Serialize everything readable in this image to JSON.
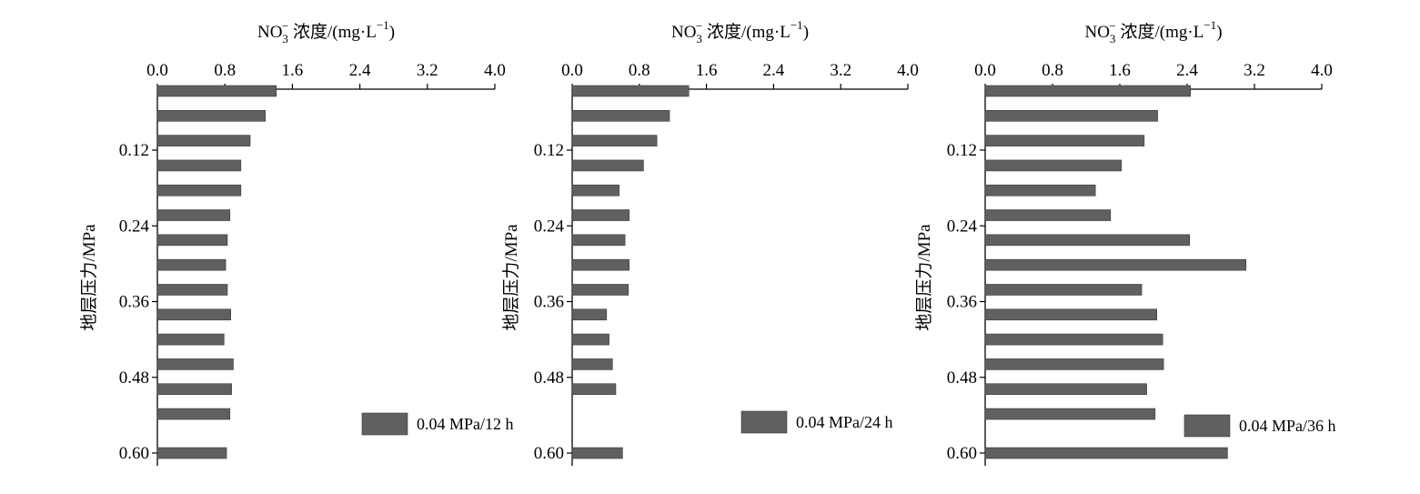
{
  "colors": {
    "bar": "#606060",
    "bar_stroke": "#3a3a3a",
    "axis": "#000000",
    "background": "#ffffff"
  },
  "axes_common": {
    "x_ticks": [
      "0.0",
      "0.8",
      "1.6",
      "2.4",
      "3.2",
      "4.0"
    ],
    "x_tick_values": [
      0.0,
      0.8,
      1.6,
      2.4,
      3.2,
      4.0
    ],
    "xlim": [
      0,
      4.0
    ],
    "y_tick_labels": [
      "0.12",
      "0.24",
      "0.36",
      "0.48",
      "0.60"
    ],
    "y_tick_values": [
      0.12,
      0.24,
      0.36,
      0.48,
      0.6
    ],
    "ylim": [
      0.0,
      0.61
    ],
    "xlabel_prefix": "NO",
    "xlabel_sub": "3",
    "xlabel_sup_ion": "−",
    "xlabel_rest": " 浓度/(mg·L",
    "xlabel_exp": "−1",
    "xlabel_close": ")",
    "ylabel": "地层压力/MPa"
  },
  "chart_data": [
    {
      "type": "bar",
      "orientation": "horizontal",
      "title": "",
      "xlabel": "NO3− 浓度/(mg·L−1)",
      "ylabel": "地层压力/MPa",
      "legend": "0.04 MPa/12 h",
      "legend_position": "bottom-right",
      "categories": [
        0.02,
        0.06,
        0.1,
        0.14,
        0.18,
        0.22,
        0.26,
        0.3,
        0.34,
        0.38,
        0.42,
        0.46,
        0.5,
        0.54,
        0.6
      ],
      "values": [
        1.41,
        1.28,
        1.1,
        0.99,
        0.99,
        0.86,
        0.83,
        0.81,
        0.83,
        0.87,
        0.79,
        0.9,
        0.88,
        0.86,
        0.82
      ],
      "xlim": [
        0,
        4.0
      ],
      "ylim": [
        0.0,
        0.61
      ]
    },
    {
      "type": "bar",
      "orientation": "horizontal",
      "title": "",
      "xlabel": "NO3− 浓度/(mg·L−1)",
      "ylabel": "地层压力/MPa",
      "legend": "0.04 MPa/24 h",
      "legend_position": "bottom-right",
      "categories": [
        0.02,
        0.06,
        0.1,
        0.14,
        0.18,
        0.22,
        0.26,
        0.3,
        0.34,
        0.38,
        0.42,
        0.46,
        0.5,
        0.6
      ],
      "values": [
        1.39,
        1.16,
        1.01,
        0.85,
        0.56,
        0.68,
        0.63,
        0.68,
        0.67,
        0.41,
        0.44,
        0.48,
        0.52,
        0.6
      ],
      "xlim": [
        0,
        4.0
      ],
      "ylim": [
        0.0,
        0.61
      ]
    },
    {
      "type": "bar",
      "orientation": "horizontal",
      "title": "",
      "xlabel": "NO3− 浓度/(mg·L−1)",
      "ylabel": "地层压力/MPa",
      "legend": "0.04 MPa/36 h",
      "legend_position": "bottom-right",
      "categories": [
        0.02,
        0.06,
        0.1,
        0.14,
        0.18,
        0.22,
        0.26,
        0.3,
        0.34,
        0.38,
        0.42,
        0.46,
        0.5,
        0.54,
        0.6
      ],
      "values": [
        2.44,
        2.05,
        1.89,
        1.62,
        1.31,
        1.49,
        2.43,
        3.1,
        1.86,
        2.04,
        2.11,
        2.12,
        1.92,
        2.02,
        2.88
      ],
      "xlim": [
        0,
        4.0
      ],
      "ylim": [
        0.0,
        0.61
      ]
    }
  ]
}
